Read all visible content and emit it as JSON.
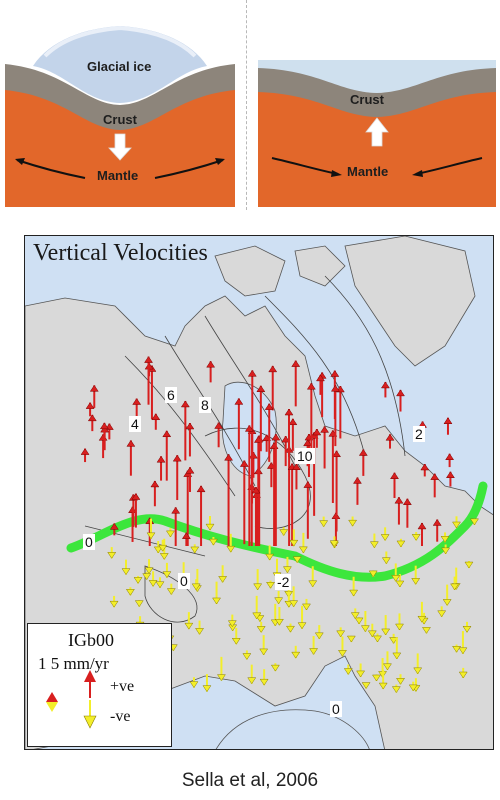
{
  "top_panels": {
    "left": {
      "ice_label": "Glacial ice",
      "crust_label": "Crust",
      "mantle_label": "Mantle"
    },
    "right": {
      "crust_label": "Crust",
      "mantle_label": "Mantle"
    }
  },
  "map": {
    "title": "Vertical Velocities",
    "contour_labels": [
      "6",
      "8",
      "4",
      "10",
      "2",
      "0",
      "0",
      "-2",
      "0"
    ],
    "colors": {
      "uplift": "#d81f1f",
      "subsidence": "#f3ee2a",
      "zero_line": "#3ce63c",
      "land": "#d9d9d9",
      "water": "#cfe0f3"
    }
  },
  "legend": {
    "title": "IGb00",
    "scale": "1   5 mm/yr",
    "positive": "+ve",
    "negative": "-ve"
  },
  "caption": "Sella et al, 2006"
}
